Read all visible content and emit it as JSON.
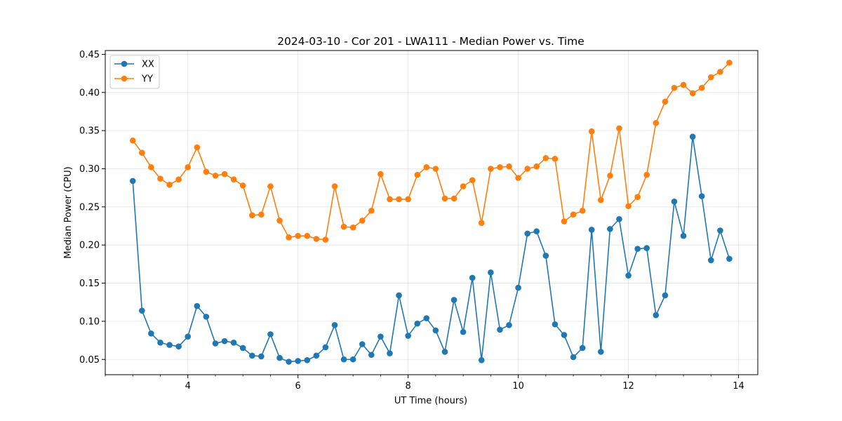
{
  "chart_data": {
    "type": "line",
    "title": "2024-03-10 - Cor 201 - LWA111 - Median Power vs. Time",
    "xlabel": "UT Time (hours)",
    "ylabel": "Median Power (CPU)",
    "xlim": [
      2.5,
      14.35
    ],
    "ylim": [
      0.03,
      0.455
    ],
    "xticks": [
      4,
      6,
      8,
      10,
      12,
      14
    ],
    "xtick_labels": [
      "4",
      "6",
      "8",
      "10",
      "12",
      "14"
    ],
    "xminor_step": 0.5,
    "yticks": [
      0.05,
      0.1,
      0.15,
      0.2,
      0.25,
      0.3,
      0.35,
      0.4,
      0.45
    ],
    "ytick_labels": [
      "0.05",
      "0.10",
      "0.15",
      "0.20",
      "0.25",
      "0.30",
      "0.35",
      "0.40",
      "0.45"
    ],
    "grid": true,
    "legend_position": "top-left",
    "x": [
      3.0,
      3.167,
      3.333,
      3.5,
      3.667,
      3.833,
      4.0,
      4.167,
      4.333,
      4.5,
      4.667,
      4.833,
      5.0,
      5.167,
      5.333,
      5.5,
      5.667,
      5.833,
      6.0,
      6.167,
      6.333,
      6.5,
      6.667,
      6.833,
      7.0,
      7.167,
      7.333,
      7.5,
      7.667,
      7.833,
      8.0,
      8.167,
      8.333,
      8.5,
      8.667,
      8.833,
      9.0,
      9.167,
      9.333,
      9.5,
      9.667,
      9.833,
      10.0,
      10.167,
      10.333,
      10.5,
      10.667,
      10.833,
      11.0,
      11.167,
      11.333,
      11.5,
      11.667,
      11.833,
      12.0,
      12.167,
      12.333,
      12.5,
      12.667,
      12.833,
      13.0,
      13.167,
      13.333,
      13.5,
      13.667,
      13.833
    ],
    "series": [
      {
        "name": "XX",
        "color": "#1f77b4",
        "values": [
          0.284,
          0.114,
          0.084,
          0.072,
          0.069,
          0.067,
          0.08,
          0.12,
          0.106,
          0.071,
          0.074,
          0.072,
          0.065,
          0.055,
          0.054,
          0.083,
          0.052,
          0.047,
          0.048,
          0.049,
          0.055,
          0.066,
          0.095,
          0.05,
          0.05,
          0.07,
          0.056,
          0.08,
          0.058,
          0.134,
          0.081,
          0.097,
          0.104,
          0.088,
          0.06,
          0.128,
          0.086,
          0.157,
          0.049,
          0.164,
          0.089,
          0.095,
          0.144,
          0.215,
          0.218,
          0.186,
          0.096,
          0.082,
          0.053,
          0.065,
          0.22,
          0.06,
          0.221,
          0.234,
          0.16,
          0.195,
          0.196,
          0.108,
          0.134,
          0.257,
          0.212,
          0.342,
          0.264,
          0.18,
          0.219,
          0.182
        ]
      },
      {
        "name": "YY",
        "color": "#ff7f0e",
        "values": [
          0.337,
          0.321,
          0.302,
          0.287,
          0.279,
          0.286,
          0.302,
          0.328,
          0.296,
          0.291,
          0.293,
          0.286,
          0.278,
          0.239,
          0.24,
          0.277,
          0.232,
          0.21,
          0.212,
          0.212,
          0.208,
          0.207,
          0.277,
          0.224,
          0.223,
          0.232,
          0.245,
          0.293,
          0.26,
          0.26,
          0.26,
          0.292,
          0.302,
          0.3,
          0.261,
          0.261,
          0.277,
          0.285,
          0.229,
          0.3,
          0.302,
          0.303,
          0.288,
          0.3,
          0.303,
          0.314,
          0.313,
          0.231,
          0.24,
          0.245,
          0.349,
          0.259,
          0.291,
          0.353,
          0.251,
          0.263,
          0.292,
          0.36,
          0.388,
          0.406,
          0.41,
          0.399,
          0.406,
          0.42,
          0.427,
          0.439
        ]
      }
    ]
  }
}
